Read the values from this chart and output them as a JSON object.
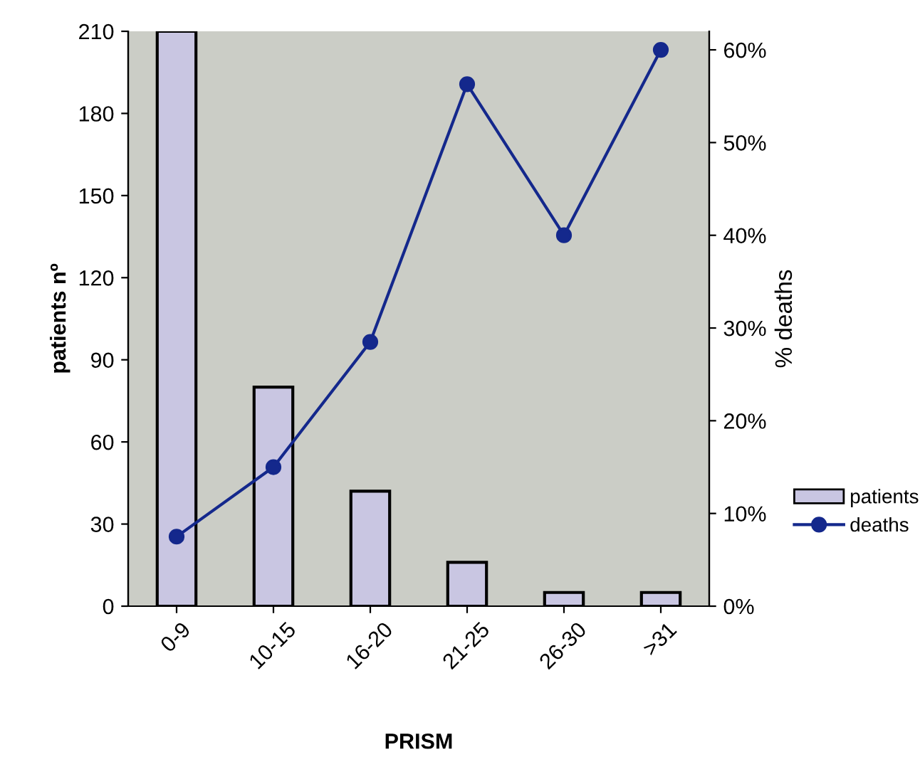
{
  "chart_data": {
    "type": "bar",
    "xlabel": "PRISM",
    "ylabel": "patients nº",
    "y2label": "% deaths",
    "categories": [
      "0-9",
      "10-15",
      "16-20",
      "21-25",
      "26-30",
      ">31"
    ],
    "series": [
      {
        "name": "patients",
        "color": "#c9c6e2",
        "values": [
          210,
          80,
          42,
          16,
          5,
          5
        ]
      },
      {
        "name": "deaths",
        "type": "line",
        "axis": "y2",
        "color": "#14288c",
        "marker": "circle",
        "values": [
          7.5,
          15,
          28.5,
          56.3,
          40,
          60
        ]
      }
    ],
    "ylim": [
      0,
      210
    ],
    "yticks": [
      0,
      30,
      60,
      90,
      120,
      150,
      180,
      210
    ],
    "y2lim": [
      0,
      62
    ],
    "y2ticks": [
      {
        "value": 0,
        "label": "0%"
      },
      {
        "value": 10,
        "label": "10%"
      },
      {
        "value": 20,
        "label": "20%"
      },
      {
        "value": 30,
        "label": "30%"
      },
      {
        "value": 40,
        "label": "40%"
      },
      {
        "value": 50,
        "label": "50%"
      },
      {
        "value": 60,
        "label": "60%"
      }
    ],
    "grid": false,
    "legend": "right"
  }
}
